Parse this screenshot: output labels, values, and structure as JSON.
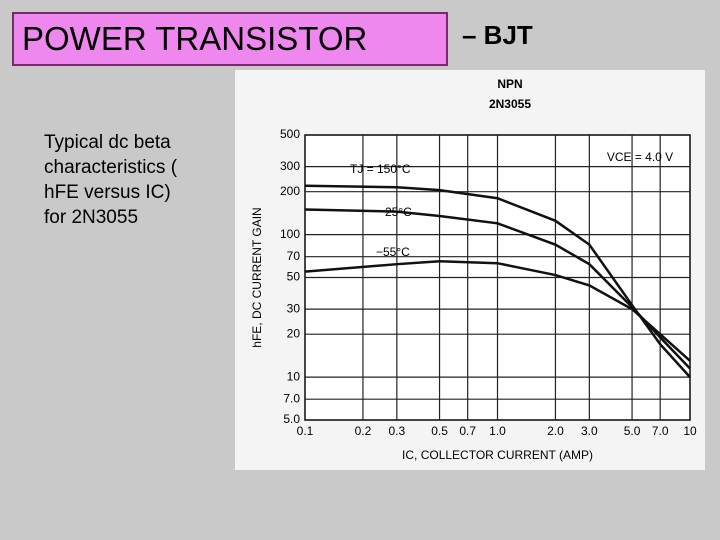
{
  "slide": {
    "title": "POWER TRANSISTOR",
    "title_suffix": "– BJT",
    "body": [
      "Typical dc beta",
      "characteristics (",
      "hFE versus IC)",
      "for 2N3055"
    ]
  },
  "chart_data": {
    "type": "line",
    "annotations": [
      "NPN",
      "2N3055",
      "VCE = 4.0 V"
    ],
    "xlabel": "IC, COLLECTOR CURRENT (AMP)",
    "ylabel": "hFE, DC CURRENT GAIN",
    "x": [
      0.1,
      0.3,
      0.5,
      1,
      2,
      3,
      5,
      7,
      10
    ],
    "series": [
      {
        "name": "TJ = 150°C",
        "color": "#111111",
        "values": [
          220,
          215,
          205,
          180,
          125,
          85,
          32,
          17,
          10
        ]
      },
      {
        "name": "25°C",
        "color": "#111111",
        "values": [
          150,
          145,
          135,
          120,
          85,
          62,
          31,
          19,
          11.5
        ]
      },
      {
        "name": "−55°C",
        "color": "#111111",
        "values": [
          55,
          62,
          65,
          63,
          52,
          44,
          30,
          20,
          13
        ]
      }
    ],
    "xlim": [
      0.1,
      10
    ],
    "ylim": [
      5,
      500
    ],
    "xlog": true,
    "ylog": true,
    "grid": true,
    "xticks": [
      0.1,
      0.2,
      0.3,
      0.5,
      0.7,
      {
        "value": 1,
        "label": "1.0"
      },
      {
        "value": 2,
        "label": "2.0"
      },
      {
        "value": 3,
        "label": "3.0"
      },
      {
        "value": 5,
        "label": "5.0"
      },
      {
        "value": 7,
        "label": "7.0"
      },
      10
    ],
    "yticks": [
      {
        "value": 5,
        "label": "5.0"
      },
      {
        "value": 7,
        "label": "7.0"
      },
      10,
      20,
      30,
      50,
      70,
      100,
      200,
      300,
      500
    ]
  }
}
